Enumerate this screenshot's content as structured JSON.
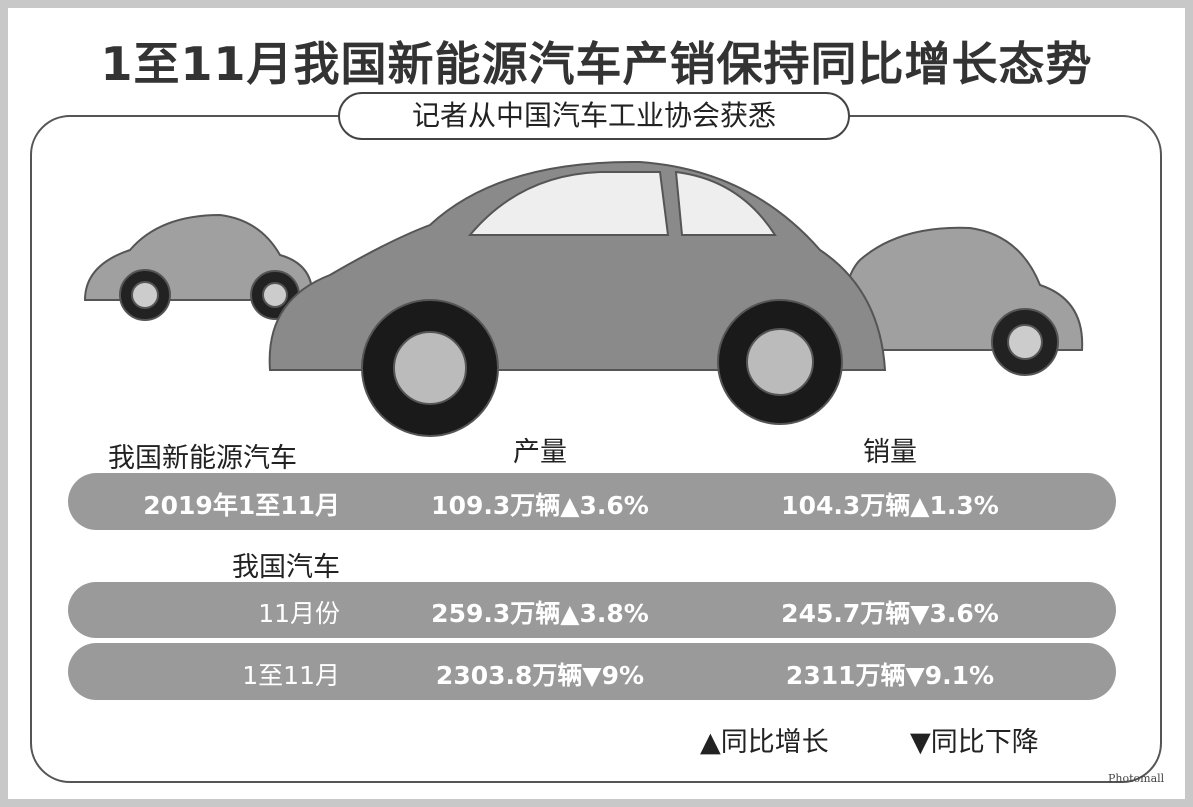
{
  "title": "1至11月我国新能源汽车产销保持同比增长态势",
  "subtitle": "记者从中国汽车工业协会获悉",
  "table": {
    "columns": [
      "产量",
      "销量"
    ],
    "sections": [
      {
        "heading": "我国新能源汽车",
        "rows": [
          [
            "2019年1至11月",
            "109.3万辆▲3.6%",
            "104.3万辆▲1.3%"
          ]
        ]
      },
      {
        "heading": "我国汽车",
        "rows": [
          [
            "11月份",
            "259.3万辆▲3.8%",
            "245.7万辆▼3.6%"
          ],
          [
            "1至11月",
            "2303.8万辆▼9%",
            "2311万辆▼9.1%"
          ]
        ]
      }
    ]
  },
  "legend": [
    "▲同比增长",
    "▼同比下降"
  ],
  "watermark": "Photomall"
}
